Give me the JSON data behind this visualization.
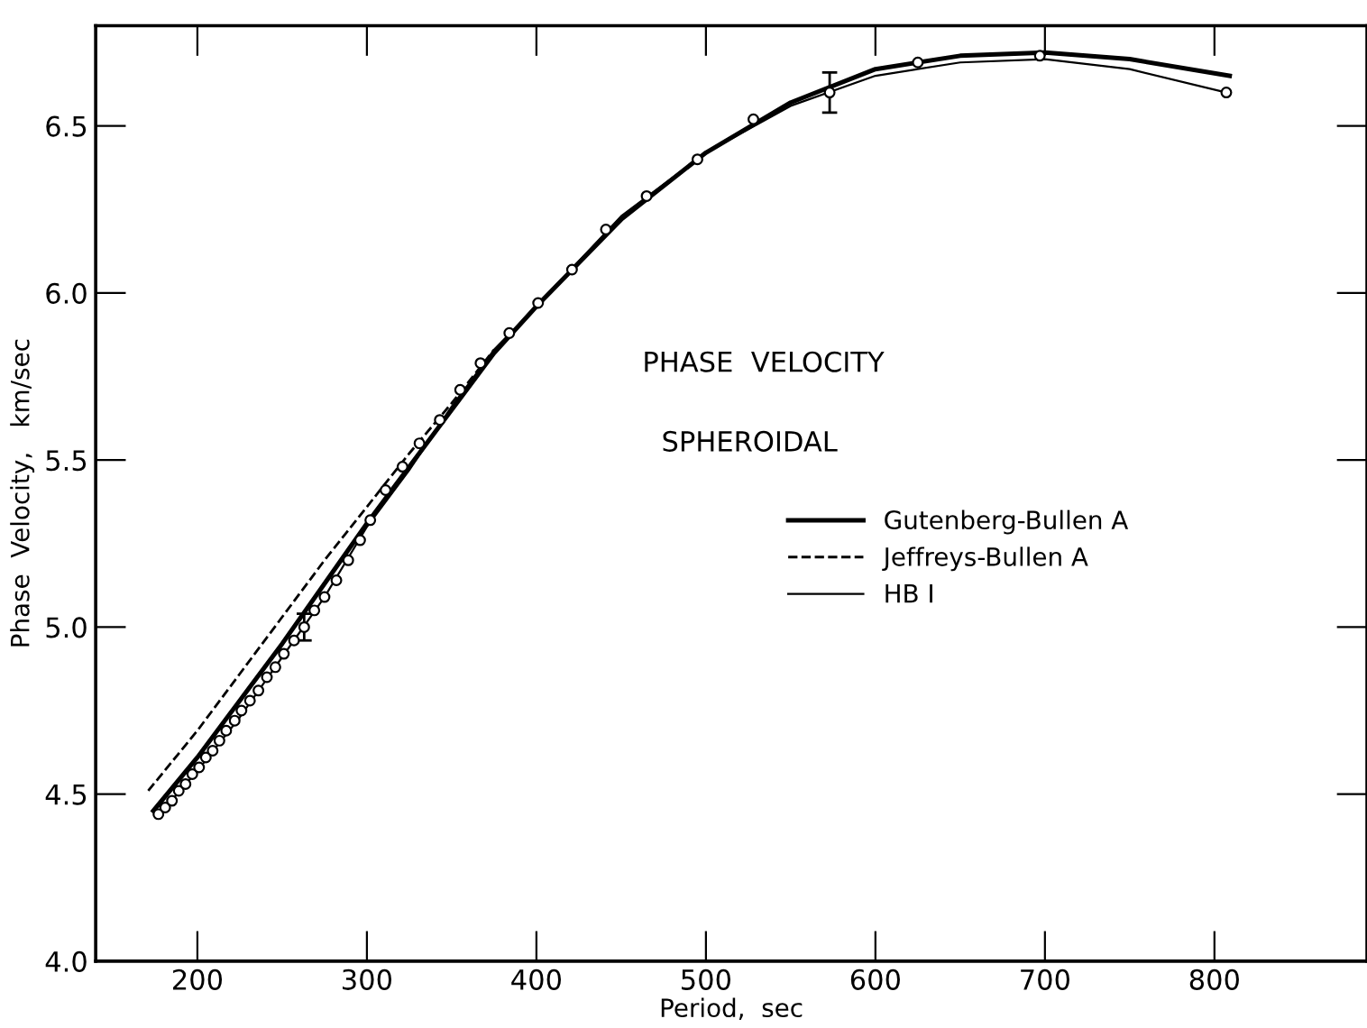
{
  "chart_data": {
    "type": "line",
    "xlabel": "Period,  sec",
    "ylabel": "Phase  Velocity,   km/sec",
    "annotations": [
      "PHASE  VELOCITY",
      "SPHEROIDAL"
    ],
    "xlim": [
      140,
      890
    ],
    "ylim": [
      4.0,
      6.8
    ],
    "xticks": [
      200,
      300,
      400,
      500,
      600,
      700,
      800
    ],
    "yticks": [
      {
        "value": 4.0,
        "label": "4.0"
      },
      {
        "value": 4.5,
        "label": "4.5"
      },
      {
        "value": 5.0,
        "label": "5.0"
      },
      {
        "value": 5.5,
        "label": "5.5"
      },
      {
        "value": 6.0,
        "label": "6.0"
      },
      {
        "value": 6.5,
        "label": "6.5"
      }
    ],
    "grid": false,
    "legend": "center right",
    "series": [
      {
        "name": "Gutenberg-Bullen A",
        "line_style": "solid",
        "color": "#000000",
        "x": [
          174,
          200,
          225,
          250,
          275,
          300,
          325,
          350,
          375,
          400,
          450,
          500,
          550,
          600,
          650,
          700,
          750,
          809
        ],
        "values": [
          4.45,
          4.61,
          4.78,
          4.95,
          5.13,
          5.31,
          5.48,
          5.65,
          5.82,
          5.96,
          6.22,
          6.42,
          6.57,
          6.67,
          6.71,
          6.72,
          6.7,
          6.65
        ]
      },
      {
        "name": "Jeffreys-Bullen A",
        "line_style": "dashed",
        "color": "#000000",
        "x": [
          171,
          200,
          225,
          250,
          275,
          300,
          325,
          350,
          375
        ],
        "values": [
          4.51,
          4.69,
          4.86,
          5.03,
          5.2,
          5.36,
          5.52,
          5.67,
          5.83
        ]
      },
      {
        "name": "HB I",
        "line_style": "solid",
        "color": "#000000",
        "x": [
          176,
          200,
          225,
          250,
          275,
          300,
          325,
          350,
          375,
          400,
          450,
          500,
          550,
          600,
          650,
          700,
          750,
          807
        ],
        "values": [
          4.43,
          4.57,
          4.73,
          4.91,
          5.09,
          5.3,
          5.47,
          5.66,
          5.83,
          5.96,
          6.23,
          6.42,
          6.56,
          6.65,
          6.69,
          6.7,
          6.67,
          6.6
        ]
      },
      {
        "type": "scatter",
        "marker": "circle",
        "color": "#000000",
        "x": [
          177,
          181,
          185,
          189,
          193,
          197,
          201,
          205,
          209,
          213,
          217,
          222,
          226,
          231,
          236,
          241,
          246,
          251,
          257,
          263,
          269,
          275,
          282,
          289,
          296,
          302,
          311,
          321,
          331,
          343,
          355,
          367,
          384,
          401,
          421,
          441,
          465,
          495,
          528,
          573,
          625,
          697,
          807
        ],
        "values": [
          4.44,
          4.46,
          4.48,
          4.51,
          4.53,
          4.56,
          4.58,
          4.61,
          4.63,
          4.66,
          4.69,
          4.72,
          4.75,
          4.78,
          4.81,
          4.85,
          4.88,
          4.92,
          4.96,
          5.0,
          5.05,
          5.09,
          5.14,
          5.2,
          5.26,
          5.32,
          5.41,
          5.48,
          5.55,
          5.62,
          5.71,
          5.79,
          5.88,
          5.97,
          6.07,
          6.19,
          6.29,
          6.4,
          6.52,
          6.6,
          6.69,
          6.71,
          6.6
        ],
        "errors": [
          null,
          null,
          null,
          null,
          null,
          null,
          null,
          null,
          null,
          null,
          null,
          null,
          null,
          null,
          null,
          null,
          null,
          null,
          null,
          0.04,
          null,
          null,
          null,
          null,
          null,
          null,
          null,
          null,
          null,
          null,
          null,
          null,
          null,
          null,
          null,
          null,
          null,
          null,
          null,
          0.06,
          null,
          null,
          null
        ]
      }
    ]
  }
}
